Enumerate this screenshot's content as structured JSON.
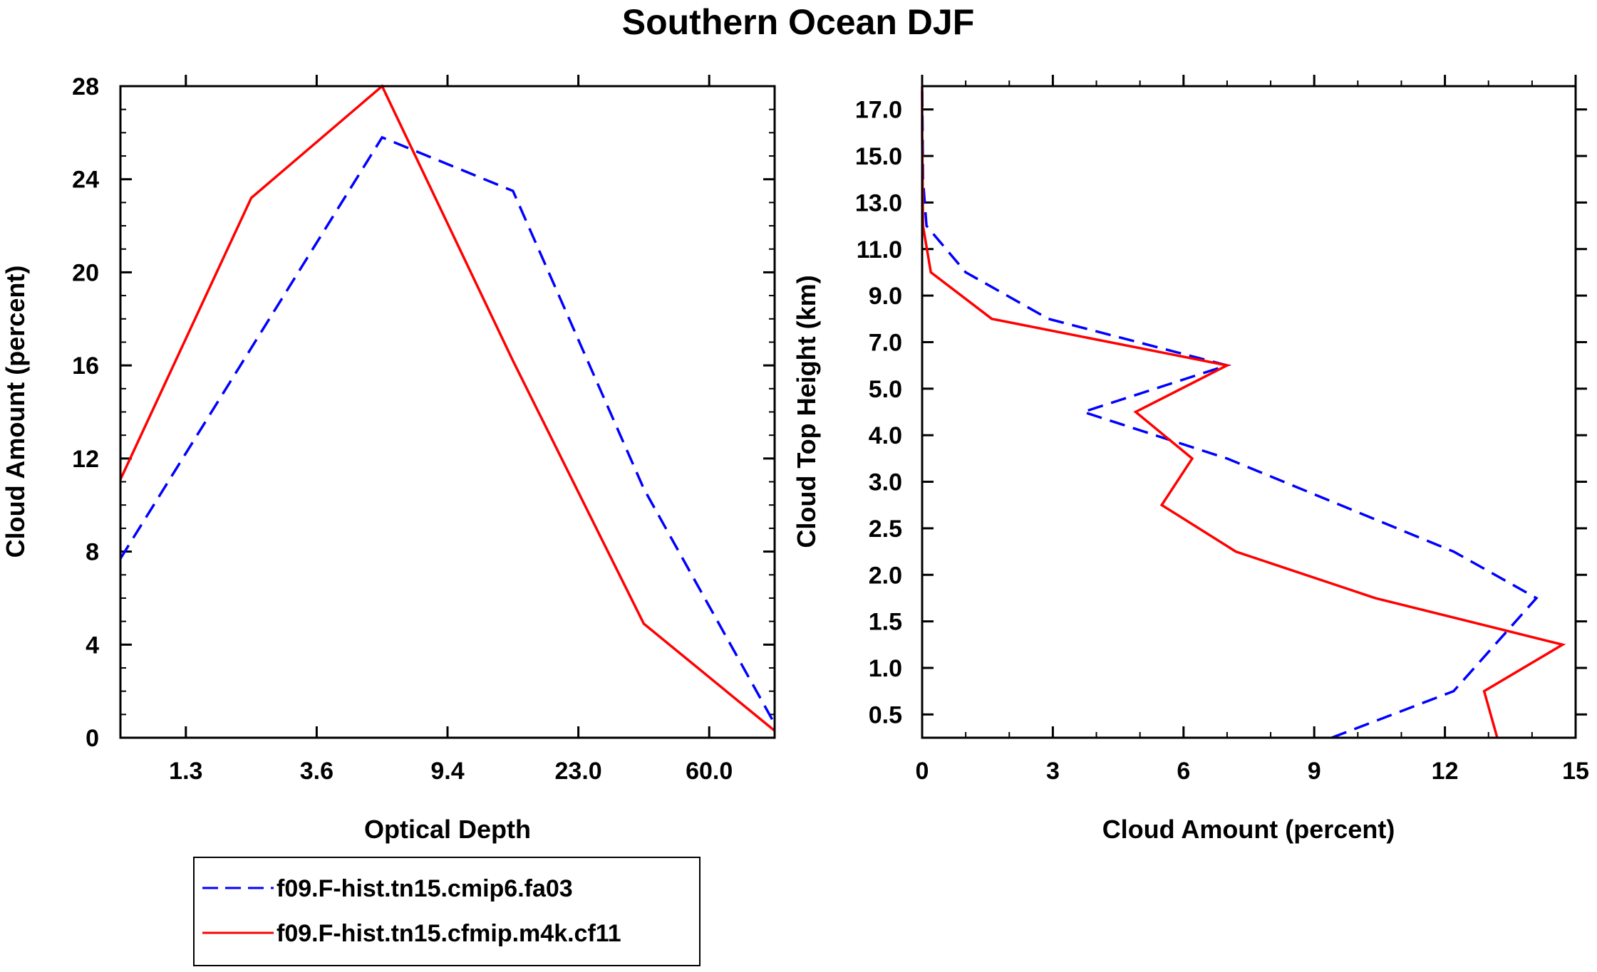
{
  "title": "Southern Ocean DJF",
  "chart_data": [
    {
      "type": "line",
      "xlabel": "Optical Depth",
      "ylabel": "Cloud Amount (percent)",
      "x_tick_labels": [
        "1.3",
        "3.6",
        "9.4",
        "23.0",
        "60.0"
      ],
      "x_tick_positions": [
        0.5,
        1.5,
        2.5,
        3.5,
        4.5
      ],
      "xlim": [
        0,
        5
      ],
      "ylim": [
        0,
        28
      ],
      "y_ticks": [
        0,
        4,
        8,
        12,
        16,
        20,
        24,
        28
      ],
      "series": [
        {
          "name": "f09.F-hist.tn15.cmip6.fa03",
          "color": "#0000ff",
          "dash": true,
          "x": [
            0,
            2,
            3,
            4,
            5
          ],
          "values": [
            7.7,
            25.8,
            23.5,
            10.7,
            0.6
          ]
        },
        {
          "name": "f09.F-hist.tn15.cfmip.m4k.cf11",
          "color": "#ff0000",
          "dash": false,
          "x": [
            0,
            1,
            2,
            3,
            4,
            5
          ],
          "values": [
            11.1,
            23.2,
            28.0,
            16.2,
            4.9,
            0.3
          ]
        }
      ]
    },
    {
      "type": "line",
      "xlabel": "Cloud Amount (percent)",
      "ylabel": "Cloud Top Height (km)",
      "x_ticks": [
        0,
        3,
        6,
        9,
        12,
        15
      ],
      "xlim": [
        0,
        15
      ],
      "y_tick_labels": [
        "0.5",
        "1.0",
        "1.5",
        "2.0",
        "2.5",
        "3.0",
        "4.0",
        "5.0",
        "7.0",
        "9.0",
        "11.0",
        "13.0",
        "15.0",
        "17.0"
      ],
      "y_tick_positions": [
        0.5,
        1.5,
        2.5,
        3.5,
        4.5,
        5.5,
        6.5,
        7.5,
        8.5,
        9.5,
        10.5,
        11.5,
        12.5,
        13.5
      ],
      "ylim": [
        0,
        14
      ],
      "series": [
        {
          "name": "f09.F-hist.tn15.cmip6.fa03",
          "color": "#0000ff",
          "dash": true,
          "level": [
            0,
            1,
            3,
            4,
            6,
            7,
            8,
            9,
            10,
            11,
            12,
            13,
            14
          ],
          "values": [
            9.4,
            12.2,
            14.1,
            12.2,
            7.0,
            3.7,
            7.0,
            2.9,
            1.0,
            0.1,
            0.02,
            0.01,
            0.0
          ]
        },
        {
          "name": "f09.F-hist.tn15.cfmip.m4k.cf11",
          "color": "#ff0000",
          "dash": false,
          "level": [
            0,
            1,
            2,
            3,
            4,
            5,
            6,
            7,
            8,
            9,
            10,
            11,
            12,
            13,
            14
          ],
          "values": [
            13.2,
            12.9,
            14.7,
            10.4,
            7.2,
            5.5,
            6.2,
            4.9,
            7.0,
            1.6,
            0.2,
            0.02,
            0.01,
            0.0,
            0.0
          ]
        }
      ]
    }
  ],
  "legend": {
    "entries": [
      {
        "label": "f09.F-hist.tn15.cmip6.fa03",
        "color": "#0000ff",
        "dash": true
      },
      {
        "label": "f09.F-hist.tn15.cfmip.m4k.cf11",
        "color": "#ff0000",
        "dash": false
      }
    ]
  }
}
